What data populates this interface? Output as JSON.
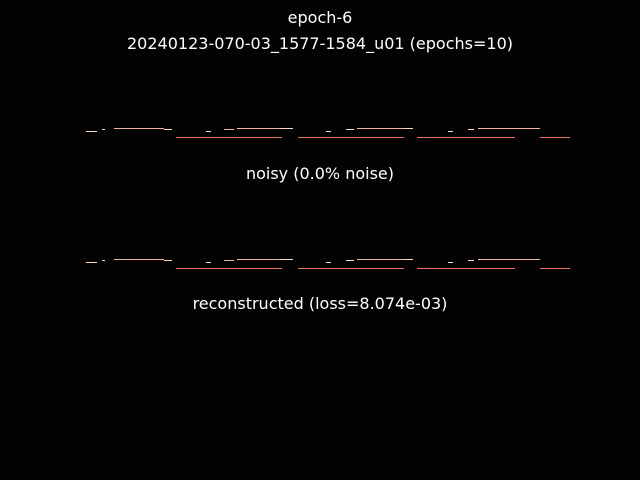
{
  "figure": {
    "epoch_label": "epoch-6",
    "run_label": "20240123-070-03_1577-1584_u01 (epochs=10)",
    "noisy_caption": "noisy (0.0% noise)",
    "reconstructed_caption": "reconstructed (loss=8.074e-03)"
  },
  "colors": {
    "background": "#030304",
    "text": "#ffffff",
    "signal_light": "#f7d9c4",
    "signal_mid": "#f2b49a",
    "signal_strong": "#e8735f"
  }
}
